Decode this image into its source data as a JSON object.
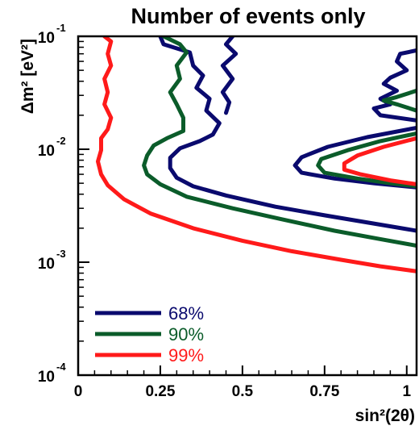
{
  "chart_data": {
    "type": "line",
    "title": "Number of events only",
    "xlabel": "sin²(2θ)",
    "ylabel": "Δm² [eV²]",
    "xlim": [
      0,
      1.03
    ],
    "ylim": [
      0.0001,
      0.1
    ],
    "y_scale": "log",
    "x_ticks": [
      "0",
      "0.25",
      "0.5",
      "0.75",
      "1"
    ],
    "x_tick_values": [
      0,
      0.25,
      0.5,
      0.75,
      1
    ],
    "y_ticks": [
      {
        "value": 0.1,
        "base": "10",
        "exp": "-1"
      },
      {
        "value": 0.01,
        "base": "10",
        "exp": "-2"
      },
      {
        "value": 0.001,
        "base": "10",
        "exp": "-3"
      },
      {
        "value": 0.0001,
        "base": "10",
        "exp": "-4"
      }
    ],
    "grid": false,
    "legend_position": "bottom-left",
    "series": [
      {
        "name": "68%",
        "color": "#0a0a6e",
        "segments": [
          [
            [
              0.25,
              0.1
            ],
            [
              0.26,
              0.085
            ],
            [
              0.34,
              0.072
            ],
            [
              0.35,
              0.055
            ],
            [
              0.38,
              0.045
            ],
            [
              0.36,
              0.035
            ],
            [
              0.4,
              0.028
            ],
            [
              0.39,
              0.022
            ],
            [
              0.43,
              0.017
            ],
            [
              0.41,
              0.0135
            ],
            [
              0.37,
              0.0118
            ],
            [
              0.31,
              0.0102
            ],
            [
              0.28,
              0.0084
            ],
            [
              0.28,
              0.0068
            ],
            [
              0.3,
              0.0056
            ],
            [
              0.35,
              0.0047
            ],
            [
              0.45,
              0.0039
            ],
            [
              0.6,
              0.0031
            ],
            [
              0.75,
              0.0026
            ],
            [
              0.9,
              0.0022
            ],
            [
              1.03,
              0.0019
            ]
          ],
          [
            [
              0.47,
              0.1
            ],
            [
              0.45,
              0.085
            ],
            [
              0.48,
              0.07
            ],
            [
              0.44,
              0.055
            ],
            [
              0.47,
              0.042
            ],
            [
              0.44,
              0.032
            ],
            [
              0.46,
              0.026
            ],
            [
              0.45,
              0.021
            ]
          ],
          [
            [
              1.03,
              0.075
            ],
            [
              0.98,
              0.07
            ],
            [
              0.97,
              0.06
            ],
            [
              1.0,
              0.05
            ],
            [
              0.95,
              0.043
            ],
            [
              0.93,
              0.038
            ],
            [
              0.97,
              0.033
            ],
            [
              0.92,
              0.028
            ],
            [
              0.95,
              0.025
            ],
            [
              0.9,
              0.023
            ],
            [
              0.92,
              0.02
            ],
            [
              1.03,
              0.018
            ]
          ],
          [
            [
              1.03,
              0.0155
            ],
            [
              0.88,
              0.0128
            ],
            [
              0.76,
              0.0105
            ],
            [
              0.68,
              0.0085
            ],
            [
              0.66,
              0.0072
            ],
            [
              0.68,
              0.0062
            ],
            [
              0.78,
              0.0055
            ],
            [
              0.9,
              0.005
            ],
            [
              1.03,
              0.0046
            ]
          ]
        ]
      },
      {
        "name": "90%",
        "color": "#0b5c2a",
        "segments": [
          [
            [
              0.26,
              0.1
            ],
            [
              0.31,
              0.085
            ],
            [
              0.33,
              0.072
            ],
            [
              0.3,
              0.055
            ],
            [
              0.31,
              0.042
            ],
            [
              0.28,
              0.032
            ],
            [
              0.3,
              0.025
            ],
            [
              0.32,
              0.019
            ],
            [
              0.32,
              0.0145
            ],
            [
              0.27,
              0.0125
            ],
            [
              0.23,
              0.0108
            ],
            [
              0.21,
              0.0088
            ],
            [
              0.2,
              0.0072
            ],
            [
              0.21,
              0.006
            ],
            [
              0.25,
              0.0049
            ],
            [
              0.33,
              0.0038
            ],
            [
              0.47,
              0.003
            ],
            [
              0.62,
              0.0024
            ],
            [
              0.78,
              0.0019
            ],
            [
              0.92,
              0.0016
            ],
            [
              1.03,
              0.0014
            ]
          ],
          [
            [
              1.03,
              0.033
            ],
            [
              0.97,
              0.029
            ],
            [
              0.93,
              0.027
            ],
            [
              0.97,
              0.025
            ],
            [
              1.03,
              0.022
            ]
          ],
          [
            [
              1.03,
              0.0138
            ],
            [
              0.92,
              0.0118
            ],
            [
              0.82,
              0.0098
            ],
            [
              0.74,
              0.0082
            ],
            [
              0.73,
              0.0072
            ],
            [
              0.75,
              0.0062
            ],
            [
              0.85,
              0.0055
            ],
            [
              0.95,
              0.005
            ],
            [
              1.03,
              0.0047
            ]
          ]
        ]
      },
      {
        "name": "99%",
        "color": "#ff1a1a",
        "segments": [
          [
            [
              0.08,
              0.1
            ],
            [
              0.1,
              0.09
            ],
            [
              0.09,
              0.07
            ],
            [
              0.1,
              0.055
            ],
            [
              0.08,
              0.042
            ],
            [
              0.09,
              0.032
            ],
            [
              0.08,
              0.025
            ],
            [
              0.1,
              0.019
            ],
            [
              0.09,
              0.015
            ],
            [
              0.07,
              0.0125
            ],
            [
              0.07,
              0.0098
            ],
            [
              0.06,
              0.0078
            ],
            [
              0.07,
              0.006
            ],
            [
              0.09,
              0.0048
            ],
            [
              0.14,
              0.0036
            ],
            [
              0.22,
              0.0027
            ],
            [
              0.35,
              0.002
            ],
            [
              0.5,
              0.00155
            ],
            [
              0.65,
              0.00125
            ],
            [
              0.8,
              0.00105
            ],
            [
              0.92,
              0.00092
            ],
            [
              1.03,
              0.00083
            ]
          ],
          [
            [
              1.03,
              0.0125
            ],
            [
              0.93,
              0.0105
            ],
            [
              0.85,
              0.0088
            ],
            [
              0.81,
              0.0075
            ],
            [
              0.81,
              0.0066
            ],
            [
              0.86,
              0.006
            ],
            [
              0.95,
              0.0053
            ],
            [
              1.03,
              0.0049
            ]
          ]
        ]
      }
    ]
  }
}
